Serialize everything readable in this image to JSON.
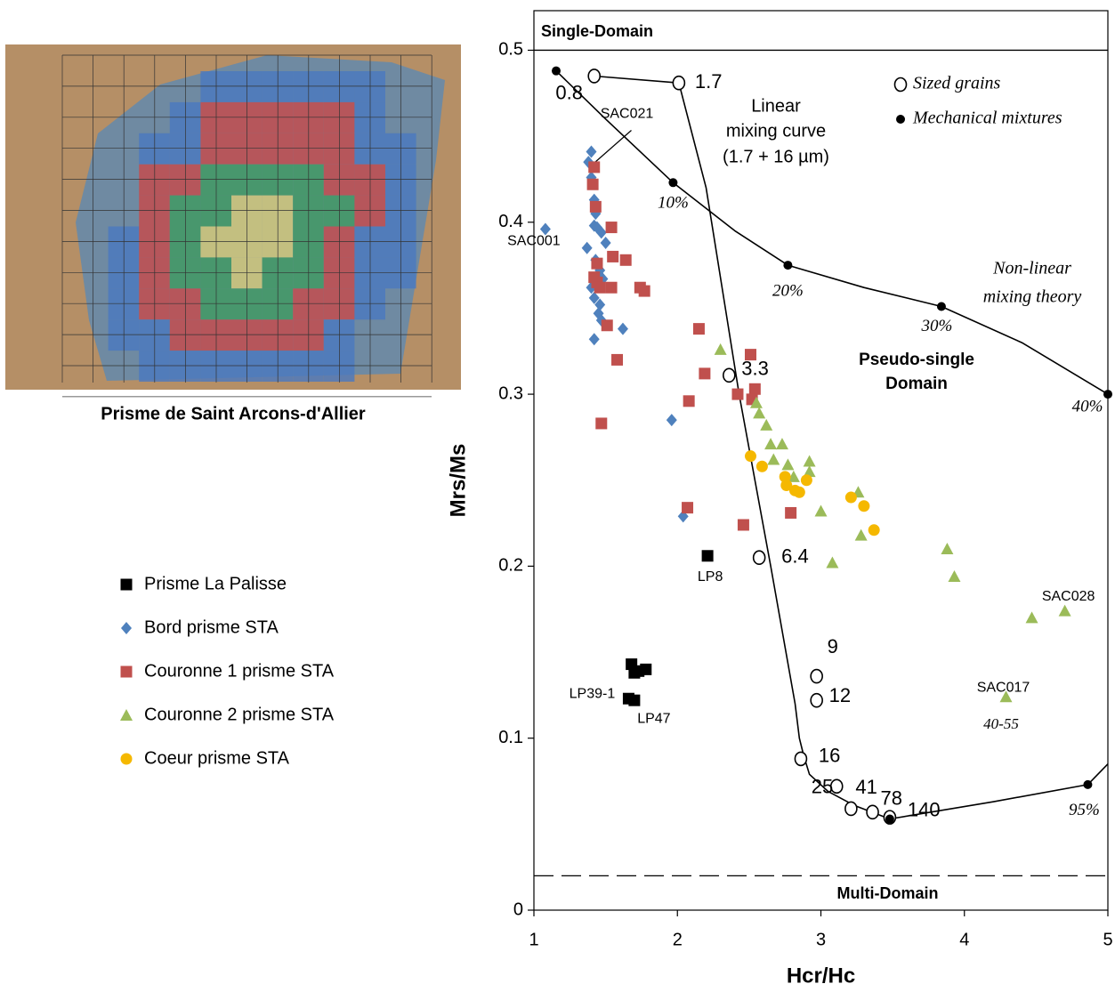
{
  "photo": {
    "caption": "Prisme de Saint Arcons-d'Allier"
  },
  "chart_data": {
    "type": "scatter",
    "x_label": "Hcr/Hc",
    "y_label": "Mrs/Ms",
    "xlim": [
      1,
      5
    ],
    "ylim": [
      0,
      0.523
    ],
    "xticks": [
      1,
      2,
      3,
      4,
      5
    ],
    "yticks": [
      0,
      0.1,
      0.2,
      0.3,
      0.4,
      0.5
    ],
    "grid": false,
    "reference_lines": [
      {
        "value": 0.5,
        "label": "Single-Domain",
        "style": "solid"
      },
      {
        "value": 0.02,
        "label": "Multi-Domain",
        "style": "dashed"
      }
    ],
    "annotations": [
      "Linear",
      "mixing curve",
      "(1.7 + 16 µm)",
      "Non-linear",
      "mixing theory",
      "Pseudo-single",
      "Domain",
      "40-55"
    ],
    "series": [
      {
        "name": "Prisme La Palisse",
        "color": "#000000",
        "marker": "square",
        "legend": "left",
        "x": [
          2.21,
          1.68,
          1.73,
          1.78,
          1.7,
          1.66,
          1.7
        ],
        "values": [
          0.206,
          0.143,
          0.139,
          0.14,
          0.138,
          0.123,
          0.122
        ],
        "point_labels": [
          "LP8",
          null,
          null,
          null,
          null,
          "LP39-1",
          "LP47"
        ]
      },
      {
        "name": "Bord prisme STA",
        "color": "#4f81bd",
        "marker": "diamond",
        "legend": "left",
        "x": [
          1.4,
          1.38,
          1.4,
          1.42,
          1.43,
          1.42,
          1.44,
          1.47,
          1.08,
          1.37,
          1.5,
          1.43,
          1.46,
          1.48,
          1.4,
          1.42,
          1.46,
          1.45,
          1.47,
          1.42,
          1.62,
          1.96,
          2.04
        ],
        "values": [
          0.441,
          0.435,
          0.426,
          0.413,
          0.405,
          0.398,
          0.397,
          0.394,
          0.396,
          0.385,
          0.388,
          0.378,
          0.372,
          0.367,
          0.362,
          0.356,
          0.352,
          0.347,
          0.343,
          0.332,
          0.338,
          0.285,
          0.229
        ],
        "point_labels": [
          "SAC021",
          null,
          null,
          null,
          null,
          null,
          null,
          null,
          "SAC001",
          null,
          null,
          null,
          null,
          null,
          null,
          null,
          null,
          null,
          null,
          null,
          null,
          null,
          null
        ]
      },
      {
        "name": "Couronne 1 prisme STA",
        "color": "#c0504d",
        "marker": "square",
        "legend": "left",
        "x": [
          1.42,
          1.41,
          1.43,
          1.54,
          1.44,
          1.42,
          1.44,
          1.46,
          1.55,
          1.64,
          1.54,
          1.74,
          1.77,
          1.51,
          1.58,
          1.47,
          2.15,
          2.19,
          2.08,
          2.42,
          2.51,
          2.54,
          2.52,
          2.07,
          2.46,
          2.79
        ],
        "values": [
          0.432,
          0.422,
          0.409,
          0.397,
          0.376,
          0.368,
          0.365,
          0.362,
          0.38,
          0.378,
          0.362,
          0.362,
          0.36,
          0.34,
          0.32,
          0.283,
          0.338,
          0.312,
          0.296,
          0.3,
          0.323,
          0.303,
          0.297,
          0.234,
          0.224,
          0.231
        ]
      },
      {
        "name": "Couronne 2 prisme STA",
        "color": "#9bbb59",
        "marker": "triangle",
        "legend": "left",
        "x": [
          2.3,
          2.55,
          2.57,
          2.62,
          2.65,
          2.73,
          2.67,
          2.77,
          2.81,
          2.92,
          2.92,
          3.0,
          3.08,
          3.26,
          3.28,
          3.88,
          3.93,
          4.29,
          4.47,
          4.7
        ],
        "values": [
          0.326,
          0.295,
          0.289,
          0.282,
          0.271,
          0.271,
          0.262,
          0.259,
          0.252,
          0.261,
          0.255,
          0.232,
          0.202,
          0.243,
          0.218,
          0.21,
          0.194,
          0.124,
          0.17,
          0.174
        ],
        "point_labels": [
          null,
          null,
          null,
          null,
          null,
          null,
          null,
          null,
          null,
          null,
          null,
          null,
          null,
          null,
          null,
          null,
          null,
          "SAC017",
          null,
          "SAC028"
        ]
      },
      {
        "name": "Coeur prisme STA",
        "color": "#f5b800",
        "marker": "circle",
        "legend": "left",
        "x": [
          2.51,
          2.59,
          2.75,
          2.76,
          2.82,
          2.85,
          2.9,
          3.21,
          3.3,
          3.37
        ],
        "values": [
          0.264,
          0.258,
          0.252,
          0.247,
          0.244,
          0.243,
          0.25,
          0.24,
          0.235,
          0.221
        ]
      },
      {
        "name": "Sized grains",
        "color": "#000000",
        "marker": "open-circle",
        "legend": "top-right",
        "x": [
          1.42,
          2.01,
          2.36,
          2.57,
          2.97,
          2.97,
          2.86,
          3.11,
          3.21,
          3.36,
          3.48
        ],
        "values": [
          0.485,
          0.481,
          0.311,
          0.205,
          0.136,
          0.122,
          0.088,
          0.072,
          0.059,
          0.057,
          0.054
        ],
        "point_labels": [
          "0.8",
          "1.7",
          "3.3",
          "6.4",
          "9",
          "12",
          "16",
          "25",
          "41",
          "78",
          "140"
        ]
      },
      {
        "name": "Mechanical mixtures",
        "color": "#000000",
        "marker": "dot",
        "legend": "top-right",
        "x": [
          1.155,
          1.97,
          2.77,
          3.84,
          5.0,
          4.86,
          3.48
        ],
        "values": [
          0.488,
          0.423,
          0.375,
          0.351,
          0.3,
          0.073,
          0.053
        ],
        "point_labels": [
          null,
          "10%",
          "20%",
          "30%",
          "40%",
          "95%",
          null
        ]
      }
    ],
    "curves": [
      {
        "color": "#000000",
        "x": [
          1.42,
          2.01,
          2.2,
          2.43,
          2.65,
          2.82,
          2.85,
          2.88,
          2.92,
          3.05,
          3.23,
          3.48
        ],
        "values": [
          0.485,
          0.481,
          0.42,
          0.3,
          0.2,
          0.12,
          0.1,
          0.09,
          0.079,
          0.069,
          0.061,
          0.053
        ]
      },
      {
        "color": "#000000",
        "x": [
          1.155,
          1.5,
          1.97,
          2.4,
          2.77,
          3.3,
          3.84,
          4.4,
          5.0,
          null,
          3.48,
          4.2,
          4.86,
          5.0
        ],
        "values": [
          0.488,
          0.46,
          0.423,
          0.395,
          0.375,
          0.362,
          0.351,
          0.33,
          0.3,
          null,
          0.053,
          0.063,
          0.073,
          0.085
        ]
      }
    ]
  }
}
